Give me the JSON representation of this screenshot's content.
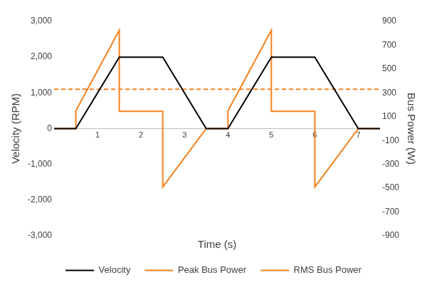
{
  "chart_data": {
    "type": "line",
    "x_label": "Time (s)",
    "y_label": "Velocity (RPM)",
    "y2_label": "Bus Power (W)",
    "x": [
      0,
      0.5,
      0.5,
      1.5,
      1.5,
      2.5,
      2.5,
      3.5,
      4.0,
      4.0,
      5.0,
      5.0,
      6.0,
      6.0,
      7.0,
      7.5
    ],
    "series": [
      {
        "name": "Velocity",
        "color": "#000000",
        "line_style": "solid",
        "marker": "none",
        "values": [
          0,
          0,
          0,
          2000,
          2000,
          2000,
          2000,
          0,
          0,
          0,
          2000,
          2000,
          2000,
          2000,
          0,
          0
        ]
      },
      {
        "name": "Peak Bus Power",
        "color": "#f5821f",
        "line_style": "solid",
        "marker": "none",
        "axis": "y2",
        "values": [
          0,
          0,
          150,
          825,
          145,
          145,
          -490,
          0,
          0,
          150,
          825,
          145,
          145,
          -490,
          0,
          0
        ]
      },
      {
        "name": "RMS Bus Power",
        "color": "#f5821f",
        "line_style": "dashed",
        "marker": "none",
        "axis": "y2",
        "values": [
          330,
          330,
          330,
          330,
          330,
          330,
          330,
          330,
          330,
          330,
          330,
          330,
          330,
          330,
          330,
          330
        ]
      }
    ],
    "xlim": [
      0,
      7.5
    ],
    "xticks": [
      1,
      2,
      3,
      4,
      5,
      6,
      7
    ],
    "ylim": [
      -3000,
      3000
    ],
    "yticks": [
      {
        "value": -3000,
        "label": "-3,000"
      },
      {
        "value": -2000,
        "label": "-2,000"
      },
      {
        "value": -1000,
        "label": "-1,000"
      },
      0,
      {
        "value": 1000,
        "label": "1,000"
      },
      {
        "value": 2000,
        "label": "2,000"
      },
      {
        "value": 3000,
        "label": "3,000"
      }
    ],
    "y2lim": [
      -900,
      900
    ],
    "y2ticks": [
      -900,
      -700,
      -500,
      -300,
      -100,
      100,
      300,
      500,
      700,
      900
    ],
    "grid": false,
    "legend": "bottom"
  }
}
